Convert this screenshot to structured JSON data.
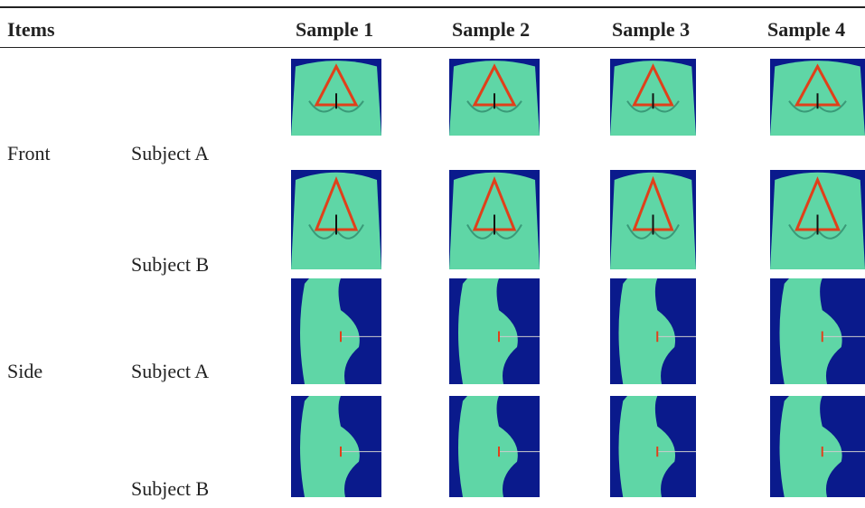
{
  "table": {
    "header": {
      "items": "Items",
      "samples": [
        "Sample 1",
        "Sample 2",
        "Sample 3",
        "Sample 4"
      ]
    },
    "groups": [
      {
        "label": "Front",
        "subjects": [
          "Subject A",
          "Subject B"
        ]
      },
      {
        "label": "Side",
        "subjects": [
          "Subject A",
          "Subject B"
        ]
      }
    ]
  }
}
